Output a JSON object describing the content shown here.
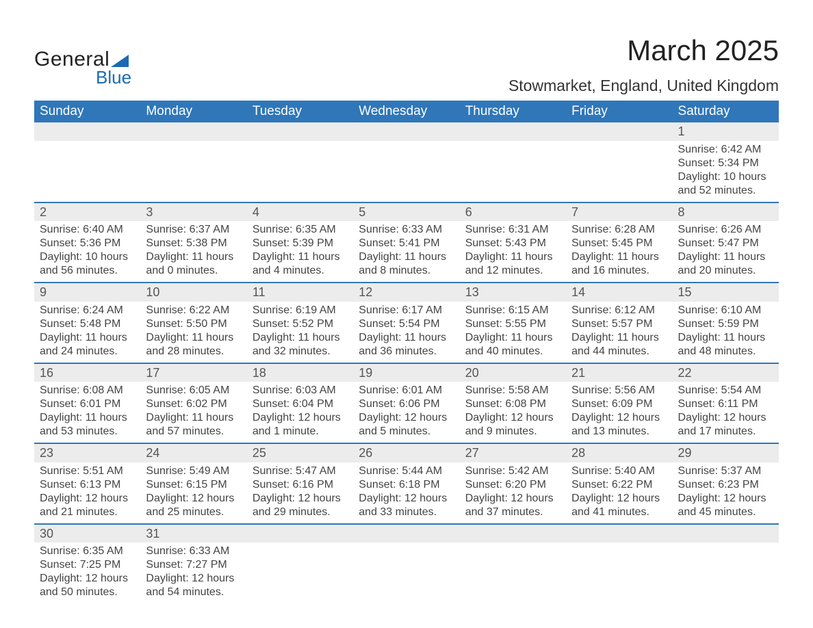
{
  "brand": {
    "word1": "General",
    "word2": "Blue",
    "accent_color": "#1a6bb3"
  },
  "title": "March 2025",
  "location": "Stowmarket, England, United Kingdom",
  "day_headers": [
    "Sunday",
    "Monday",
    "Tuesday",
    "Wednesday",
    "Thursday",
    "Friday",
    "Saturday"
  ],
  "header_bg": "#2f77b9",
  "row_divider_color": "#2f77b9",
  "daynum_bg": "#ececec",
  "text_color": "#444444",
  "weeks": [
    [
      null,
      null,
      null,
      null,
      null,
      null,
      {
        "n": "1",
        "sunrise": "Sunrise: 6:42 AM",
        "sunset": "Sunset: 5:34 PM",
        "d1": "Daylight: 10 hours",
        "d2": "and 52 minutes."
      }
    ],
    [
      {
        "n": "2",
        "sunrise": "Sunrise: 6:40 AM",
        "sunset": "Sunset: 5:36 PM",
        "d1": "Daylight: 10 hours",
        "d2": "and 56 minutes."
      },
      {
        "n": "3",
        "sunrise": "Sunrise: 6:37 AM",
        "sunset": "Sunset: 5:38 PM",
        "d1": "Daylight: 11 hours",
        "d2": "and 0 minutes."
      },
      {
        "n": "4",
        "sunrise": "Sunrise: 6:35 AM",
        "sunset": "Sunset: 5:39 PM",
        "d1": "Daylight: 11 hours",
        "d2": "and 4 minutes."
      },
      {
        "n": "5",
        "sunrise": "Sunrise: 6:33 AM",
        "sunset": "Sunset: 5:41 PM",
        "d1": "Daylight: 11 hours",
        "d2": "and 8 minutes."
      },
      {
        "n": "6",
        "sunrise": "Sunrise: 6:31 AM",
        "sunset": "Sunset: 5:43 PM",
        "d1": "Daylight: 11 hours",
        "d2": "and 12 minutes."
      },
      {
        "n": "7",
        "sunrise": "Sunrise: 6:28 AM",
        "sunset": "Sunset: 5:45 PM",
        "d1": "Daylight: 11 hours",
        "d2": "and 16 minutes."
      },
      {
        "n": "8",
        "sunrise": "Sunrise: 6:26 AM",
        "sunset": "Sunset: 5:47 PM",
        "d1": "Daylight: 11 hours",
        "d2": "and 20 minutes."
      }
    ],
    [
      {
        "n": "9",
        "sunrise": "Sunrise: 6:24 AM",
        "sunset": "Sunset: 5:48 PM",
        "d1": "Daylight: 11 hours",
        "d2": "and 24 minutes."
      },
      {
        "n": "10",
        "sunrise": "Sunrise: 6:22 AM",
        "sunset": "Sunset: 5:50 PM",
        "d1": "Daylight: 11 hours",
        "d2": "and 28 minutes."
      },
      {
        "n": "11",
        "sunrise": "Sunrise: 6:19 AM",
        "sunset": "Sunset: 5:52 PM",
        "d1": "Daylight: 11 hours",
        "d2": "and 32 minutes."
      },
      {
        "n": "12",
        "sunrise": "Sunrise: 6:17 AM",
        "sunset": "Sunset: 5:54 PM",
        "d1": "Daylight: 11 hours",
        "d2": "and 36 minutes."
      },
      {
        "n": "13",
        "sunrise": "Sunrise: 6:15 AM",
        "sunset": "Sunset: 5:55 PM",
        "d1": "Daylight: 11 hours",
        "d2": "and 40 minutes."
      },
      {
        "n": "14",
        "sunrise": "Sunrise: 6:12 AM",
        "sunset": "Sunset: 5:57 PM",
        "d1": "Daylight: 11 hours",
        "d2": "and 44 minutes."
      },
      {
        "n": "15",
        "sunrise": "Sunrise: 6:10 AM",
        "sunset": "Sunset: 5:59 PM",
        "d1": "Daylight: 11 hours",
        "d2": "and 48 minutes."
      }
    ],
    [
      {
        "n": "16",
        "sunrise": "Sunrise: 6:08 AM",
        "sunset": "Sunset: 6:01 PM",
        "d1": "Daylight: 11 hours",
        "d2": "and 53 minutes."
      },
      {
        "n": "17",
        "sunrise": "Sunrise: 6:05 AM",
        "sunset": "Sunset: 6:02 PM",
        "d1": "Daylight: 11 hours",
        "d2": "and 57 minutes."
      },
      {
        "n": "18",
        "sunrise": "Sunrise: 6:03 AM",
        "sunset": "Sunset: 6:04 PM",
        "d1": "Daylight: 12 hours",
        "d2": "and 1 minute."
      },
      {
        "n": "19",
        "sunrise": "Sunrise: 6:01 AM",
        "sunset": "Sunset: 6:06 PM",
        "d1": "Daylight: 12 hours",
        "d2": "and 5 minutes."
      },
      {
        "n": "20",
        "sunrise": "Sunrise: 5:58 AM",
        "sunset": "Sunset: 6:08 PM",
        "d1": "Daylight: 12 hours",
        "d2": "and 9 minutes."
      },
      {
        "n": "21",
        "sunrise": "Sunrise: 5:56 AM",
        "sunset": "Sunset: 6:09 PM",
        "d1": "Daylight: 12 hours",
        "d2": "and 13 minutes."
      },
      {
        "n": "22",
        "sunrise": "Sunrise: 5:54 AM",
        "sunset": "Sunset: 6:11 PM",
        "d1": "Daylight: 12 hours",
        "d2": "and 17 minutes."
      }
    ],
    [
      {
        "n": "23",
        "sunrise": "Sunrise: 5:51 AM",
        "sunset": "Sunset: 6:13 PM",
        "d1": "Daylight: 12 hours",
        "d2": "and 21 minutes."
      },
      {
        "n": "24",
        "sunrise": "Sunrise: 5:49 AM",
        "sunset": "Sunset: 6:15 PM",
        "d1": "Daylight: 12 hours",
        "d2": "and 25 minutes."
      },
      {
        "n": "25",
        "sunrise": "Sunrise: 5:47 AM",
        "sunset": "Sunset: 6:16 PM",
        "d1": "Daylight: 12 hours",
        "d2": "and 29 minutes."
      },
      {
        "n": "26",
        "sunrise": "Sunrise: 5:44 AM",
        "sunset": "Sunset: 6:18 PM",
        "d1": "Daylight: 12 hours",
        "d2": "and 33 minutes."
      },
      {
        "n": "27",
        "sunrise": "Sunrise: 5:42 AM",
        "sunset": "Sunset: 6:20 PM",
        "d1": "Daylight: 12 hours",
        "d2": "and 37 minutes."
      },
      {
        "n": "28",
        "sunrise": "Sunrise: 5:40 AM",
        "sunset": "Sunset: 6:22 PM",
        "d1": "Daylight: 12 hours",
        "d2": "and 41 minutes."
      },
      {
        "n": "29",
        "sunrise": "Sunrise: 5:37 AM",
        "sunset": "Sunset: 6:23 PM",
        "d1": "Daylight: 12 hours",
        "d2": "and 45 minutes."
      }
    ],
    [
      {
        "n": "30",
        "sunrise": "Sunrise: 6:35 AM",
        "sunset": "Sunset: 7:25 PM",
        "d1": "Daylight: 12 hours",
        "d2": "and 50 minutes."
      },
      {
        "n": "31",
        "sunrise": "Sunrise: 6:33 AM",
        "sunset": "Sunset: 7:27 PM",
        "d1": "Daylight: 12 hours",
        "d2": "and 54 minutes."
      },
      null,
      null,
      null,
      null,
      null
    ]
  ]
}
